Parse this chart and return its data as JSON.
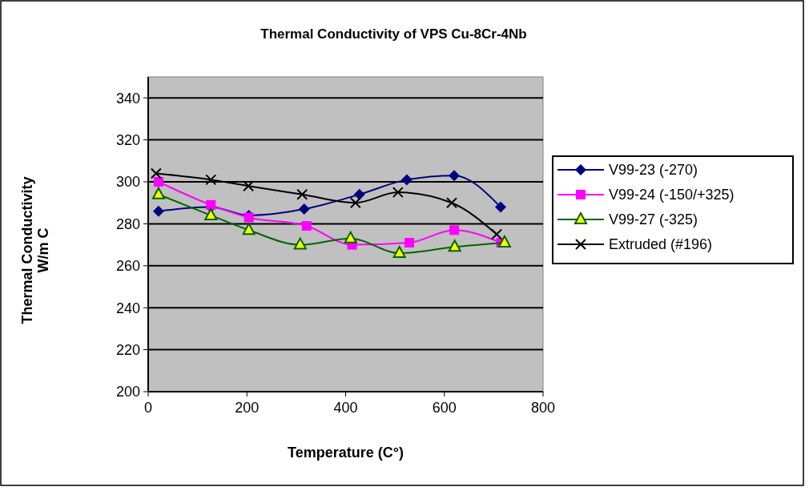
{
  "chart_data": {
    "type": "line",
    "title": "Thermal Conductivity of VPS Cu-8Cr-4Nb",
    "xlabel": "Temperature (C°)",
    "ylabel": "Thermal Conductivity\nW/m C",
    "xlim": [
      0,
      800
    ],
    "xticks": [
      0,
      200,
      400,
      600,
      800
    ],
    "ylim": [
      200,
      350
    ],
    "yticks": [
      200,
      220,
      240,
      260,
      280,
      300,
      320,
      340
    ],
    "grid": "y",
    "legend": "right",
    "series": [
      {
        "name": "V99-23 (-270)",
        "color": "#000080",
        "marker": "diamond",
        "x": [
          21,
          127,
          204,
          316,
          428,
          524,
          620,
          714
        ],
        "values": [
          286,
          288,
          284,
          287,
          294,
          301,
          303,
          288
        ]
      },
      {
        "name": "V99-24 (-150/+325)",
        "color": "#ff00ff",
        "marker": "square",
        "x": [
          21,
          127,
          204,
          321,
          413,
          529,
          620,
          715
        ],
        "values": [
          300,
          289,
          283,
          279,
          270,
          271,
          277,
          271
        ]
      },
      {
        "name": "V99-27 (-325)",
        "color": "#006400",
        "marker": "triangle",
        "x": [
          21,
          127,
          204,
          308,
          410,
          509,
          621,
          722
        ],
        "values": [
          294,
          284,
          277,
          270,
          273,
          266,
          269,
          271
        ]
      },
      {
        "name": "Extruded (#196)",
        "color": "#000000",
        "marker": "cross",
        "x": [
          16,
          127,
          203,
          312,
          420,
          506,
          615,
          706
        ],
        "values": [
          304,
          301,
          298,
          294,
          290,
          295,
          290,
          275
        ]
      }
    ]
  }
}
